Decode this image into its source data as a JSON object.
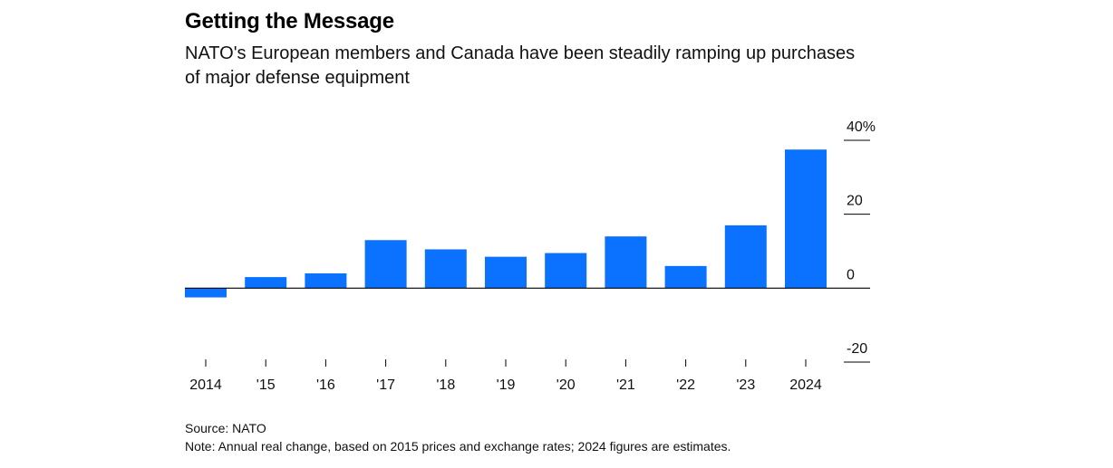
{
  "title": "Getting the Message",
  "subtitle": "NATO's European members and Canada have been steadily ramping up purchases of major defense equipment",
  "source": "Source: NATO",
  "note": "Note: Annual real change, based on 2015 prices and exchange rates; 2024 figures are estimates.",
  "colors": {
    "bar": "#0a72ff",
    "axis": "#000000",
    "gridline": "#000000"
  },
  "chart_data": {
    "type": "bar",
    "categories": [
      "2014",
      "'15",
      "'16",
      "'17",
      "'18",
      "'19",
      "'20",
      "'21",
      "'22",
      "'23",
      "2024"
    ],
    "values": [
      -2.5,
      3,
      4,
      13,
      10.5,
      8.5,
      9.5,
      14,
      6,
      17,
      37.5
    ],
    "ylim": [
      -20,
      40
    ],
    "yticks": [
      -20,
      0,
      20,
      40
    ],
    "ytick_labels": [
      "-20",
      "0",
      "20",
      "40%"
    ],
    "xlabel": "",
    "ylabel": ""
  }
}
